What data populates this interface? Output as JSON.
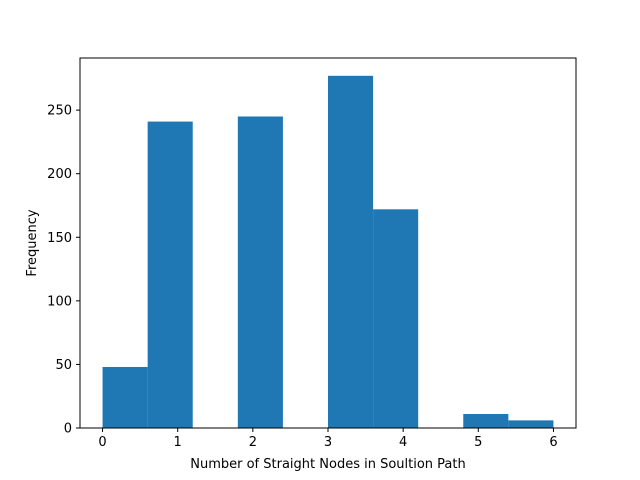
{
  "chart_data": {
    "type": "bar",
    "subtype": "histogram",
    "title": "",
    "xlabel": "Number of Straight Nodes in Soultion Path",
    "ylabel": "Frequency",
    "bins": [
      {
        "x0": 0.0,
        "x1": 0.6,
        "count": 48
      },
      {
        "x0": 0.6,
        "x1": 1.2,
        "count": 241
      },
      {
        "x0": 1.2,
        "x1": 1.8,
        "count": 0
      },
      {
        "x0": 1.8,
        "x1": 2.4,
        "count": 245
      },
      {
        "x0": 2.4,
        "x1": 3.0,
        "count": 0
      },
      {
        "x0": 3.0,
        "x1": 3.6,
        "count": 277
      },
      {
        "x0": 3.6,
        "x1": 4.2,
        "count": 172
      },
      {
        "x0": 4.2,
        "x1": 4.8,
        "count": 0
      },
      {
        "x0": 4.8,
        "x1": 5.4,
        "count": 11
      },
      {
        "x0": 5.4,
        "x1": 6.0,
        "count": 6
      }
    ],
    "xlim": [
      -0.3,
      6.3
    ],
    "ylim": [
      0,
      291
    ],
    "xticks": [
      0,
      1,
      2,
      3,
      4,
      5,
      6
    ],
    "yticks": [
      0,
      50,
      100,
      150,
      200,
      250
    ],
    "grid": false,
    "legend": "none",
    "bar_color": "#1f77b4"
  }
}
